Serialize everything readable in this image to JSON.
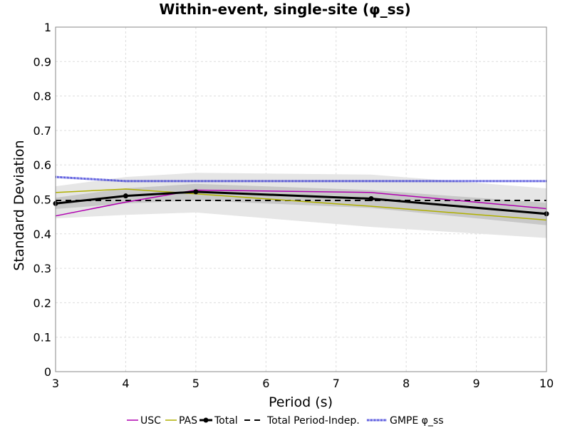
{
  "chart_data": {
    "type": "line",
    "title": "Within-event, single-site (φ_ss)",
    "xlabel": "Period (s)",
    "ylabel": "Standard Deviation",
    "xlim": [
      3,
      10
    ],
    "ylim": [
      0,
      1
    ],
    "x_ticks": [
      "3",
      "4",
      "5",
      "6",
      "7",
      "8",
      "9",
      "10"
    ],
    "y_ticks": [
      "0",
      "0.1",
      "0.2",
      "0.3",
      "0.4",
      "0.5",
      "0.6",
      "0.7",
      "0.8",
      "0.9",
      "1"
    ],
    "grid": true,
    "legend_position": "bottom",
    "series": [
      {
        "name": "USC",
        "color": "#b000b0",
        "style": "solid",
        "x": [
          3,
          4,
          5,
          7.5,
          10
        ],
        "y": [
          0.452,
          0.492,
          0.527,
          0.52,
          0.473
        ]
      },
      {
        "name": "PAS",
        "color": "#b0b000",
        "style": "solid",
        "x": [
          3,
          4,
          5,
          7.5,
          10
        ],
        "y": [
          0.52,
          0.53,
          0.516,
          0.48,
          0.44
        ]
      },
      {
        "name": "Total",
        "color": "#000000",
        "style": "solid-marker",
        "x": [
          3,
          4,
          5,
          7.5,
          10
        ],
        "y": [
          0.488,
          0.51,
          0.522,
          0.502,
          0.458
        ]
      },
      {
        "name": "Total Period-Indep.",
        "color": "#000000",
        "style": "dashed",
        "x": [
          3,
          10
        ],
        "y": [
          0.497,
          0.497
        ]
      },
      {
        "name": "GMPE φ_ss",
        "color": "#0000cc",
        "style": "dotted",
        "x": [
          3,
          4,
          5,
          10
        ],
        "y": [
          0.565,
          0.553,
          0.553,
          0.553
        ]
      }
    ],
    "bands": [
      {
        "color": "#e6e6e6",
        "x": [
          3,
          4,
          5,
          7.5,
          10
        ],
        "lower": [
          0.445,
          0.455,
          0.462,
          0.42,
          0.388
        ],
        "upper": [
          0.538,
          0.565,
          0.577,
          0.572,
          0.532
        ]
      },
      {
        "color": "#c8c8c8",
        "x": [
          3,
          4,
          5,
          7.5,
          10
        ],
        "lower": [
          0.472,
          0.488,
          0.497,
          0.475,
          0.425
        ],
        "upper": [
          0.505,
          0.532,
          0.545,
          0.527,
          0.49
        ]
      }
    ]
  }
}
